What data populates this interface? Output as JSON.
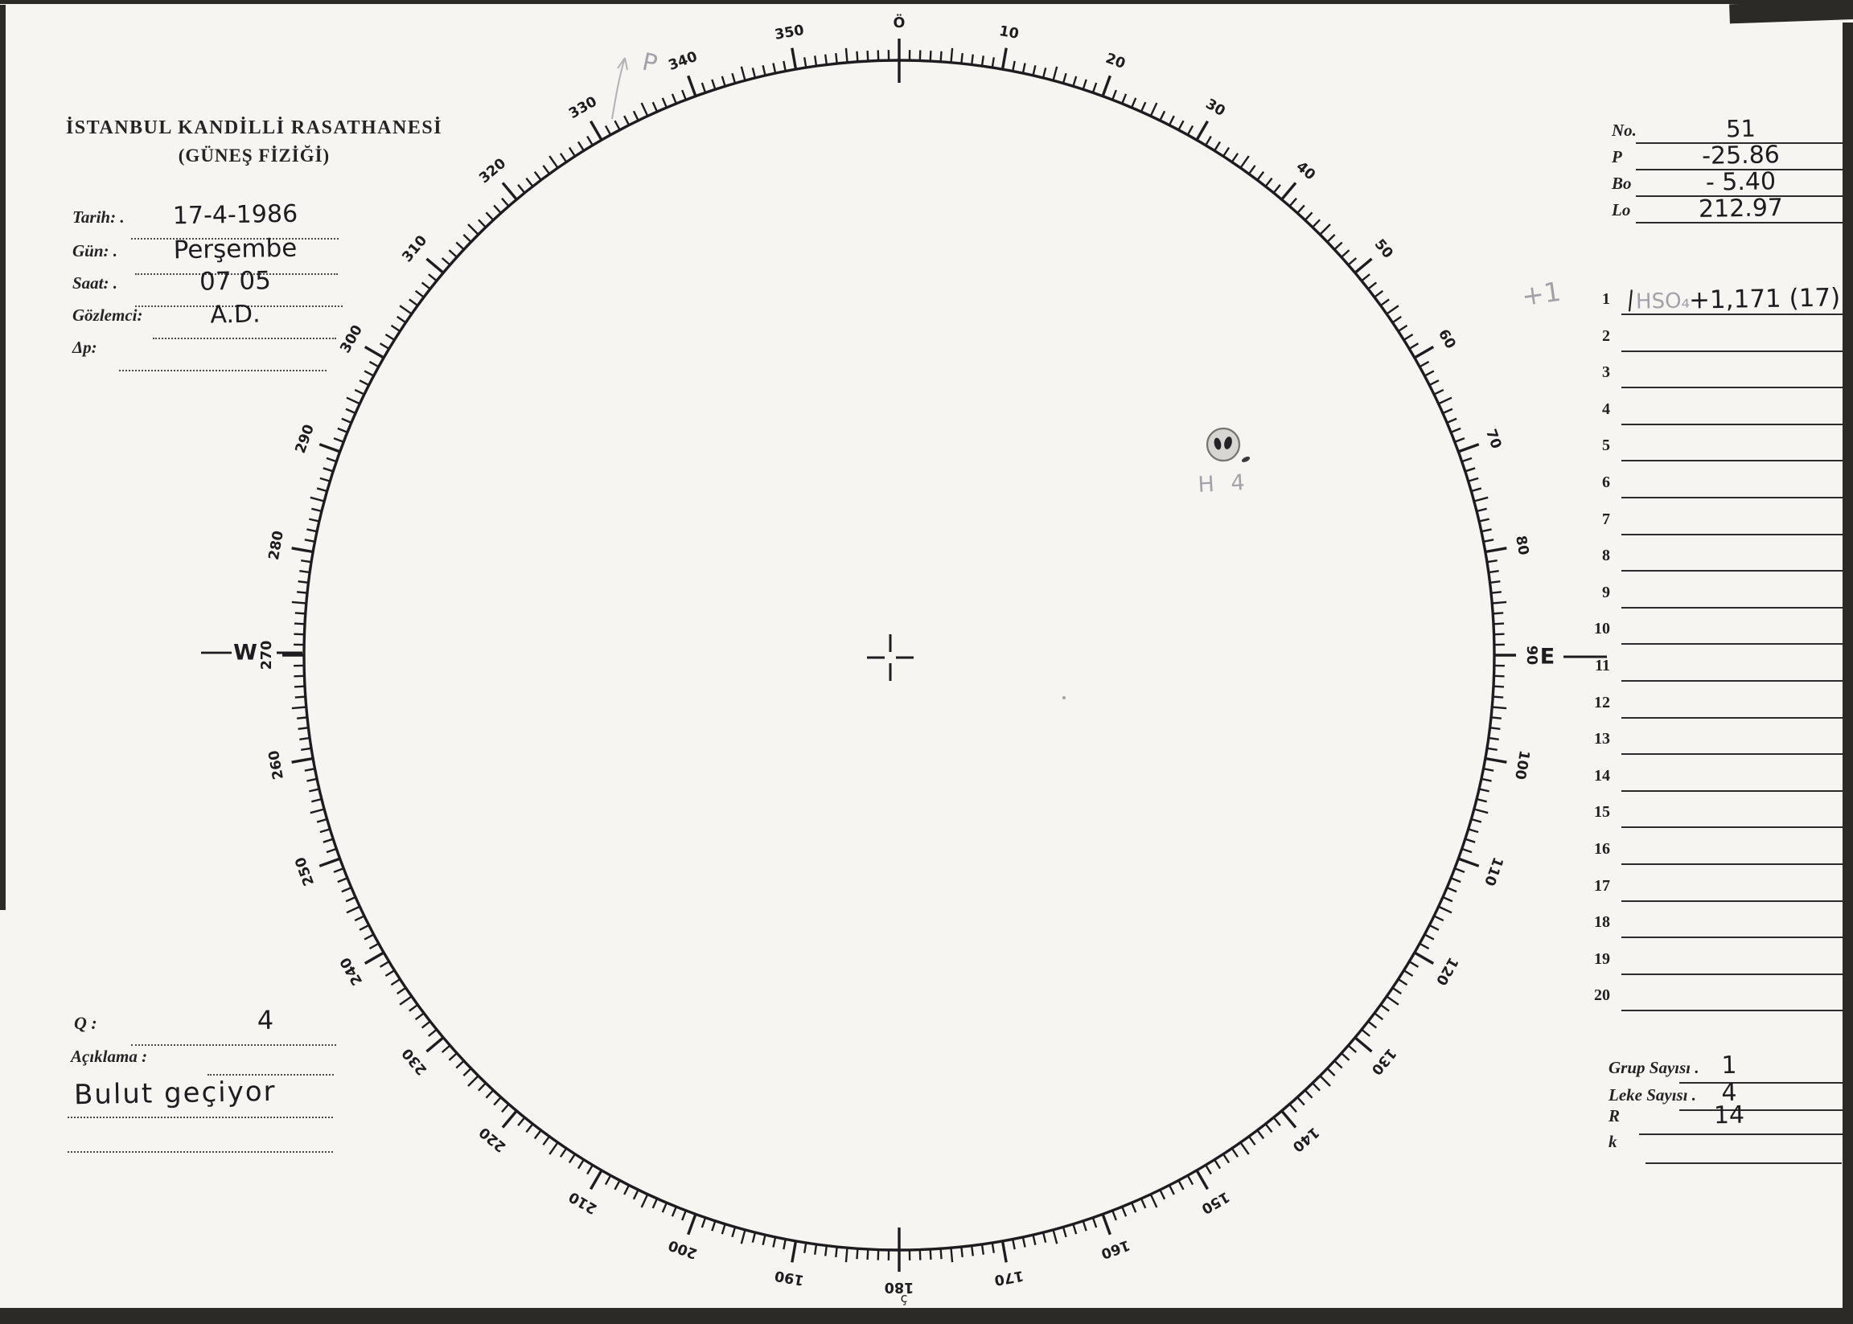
{
  "colors": {
    "ink": "#1d1d1f",
    "print": "#242424",
    "pencil": "#a2a2a8",
    "paper": "#f6f5f1",
    "penumbra": "#d7d6d2",
    "umbra": "#242426"
  },
  "header": {
    "line1": "İSTANBUL KANDİLLİ RASATHANESİ",
    "line2": "(GÜNEŞ FİZİĞİ)"
  },
  "observation_form": {
    "rows": [
      {
        "label": "Tarih: .",
        "value": "17-4-1986"
      },
      {
        "label": "Gün: .",
        "value": "Perşembe"
      },
      {
        "label": "Saat: .",
        "value": "07 05"
      },
      {
        "label": "Gözlemci:",
        "value": "A.D."
      },
      {
        "label": "Δp:",
        "value": ""
      }
    ]
  },
  "ephemeris": {
    "rows": [
      {
        "label": "No.",
        "value": "51"
      },
      {
        "label": "P",
        "value": "-25.86"
      },
      {
        "label": "Bo",
        "value": "- 5.40"
      },
      {
        "label": "Lo",
        "value": "212.97"
      }
    ]
  },
  "group_list": {
    "margin_note": "+1",
    "rows": [
      {
        "n": "1",
        "mark": "|",
        "pencil": "HSO₄",
        "pen": "+1,171 (17)"
      },
      {
        "n": "2"
      },
      {
        "n": "3"
      },
      {
        "n": "4"
      },
      {
        "n": "5"
      },
      {
        "n": "6"
      },
      {
        "n": "7"
      },
      {
        "n": "8"
      },
      {
        "n": "9"
      },
      {
        "n": "10"
      },
      {
        "n": "11"
      },
      {
        "n": "12"
      },
      {
        "n": "13"
      },
      {
        "n": "14"
      },
      {
        "n": "15"
      },
      {
        "n": "16"
      },
      {
        "n": "17"
      },
      {
        "n": "18"
      },
      {
        "n": "19"
      },
      {
        "n": "20"
      }
    ]
  },
  "quality": {
    "q_label": "Q :",
    "q_value": "4",
    "aciklama_label": "Açıklama :",
    "note": "Bulut geçiyor"
  },
  "summary": {
    "rows": [
      {
        "label": "Grup Sayısı .",
        "value": "1"
      },
      {
        "label": "Leke Sayısı .",
        "value": "4"
      },
      {
        "label": "R",
        "value": "14"
      },
      {
        "label": "k",
        "value": ""
      }
    ]
  },
  "dial": {
    "degree_labels": [
      "Ö",
      "10",
      "20",
      "30",
      "40",
      "50",
      "60",
      "70",
      "80",
      "90",
      "100",
      "110",
      "120",
      "130",
      "140",
      "150",
      "160",
      "170",
      "180",
      "190",
      "200",
      "210",
      "220",
      "230",
      "240",
      "250",
      "260",
      "270",
      "280",
      "290",
      "300",
      "310",
      "320",
      "330",
      "340",
      "350"
    ],
    "west": "W",
    "east": "E",
    "south_mark": "ç"
  },
  "annotations": {
    "pencil_arrow_label": "P",
    "sunspot_group_label": "H 4"
  }
}
